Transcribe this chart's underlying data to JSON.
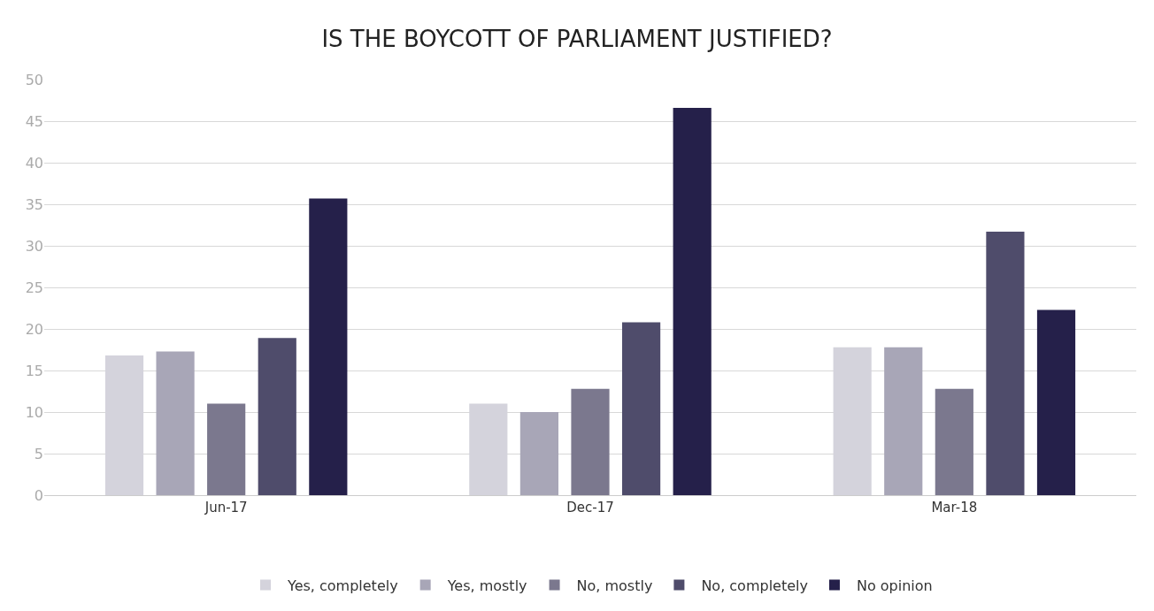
{
  "chart_data": {
    "type": "bar",
    "title": "IS THE BOYCOTT OF PARLIAMENT JUSTIFIED?",
    "categories": [
      "Jun-17",
      "Dec-17",
      "Mar-18"
    ],
    "series": [
      {
        "name": "Yes, completely",
        "color": "#d4d3dc",
        "values": [
          16.8,
          11,
          17.8
        ]
      },
      {
        "name": "Yes, mostly",
        "color": "#a8a6b7",
        "values": [
          17.3,
          10,
          17.8
        ]
      },
      {
        "name": "No, mostly",
        "color": "#7b788e",
        "values": [
          11,
          12.8,
          12.8
        ]
      },
      {
        "name": "No, completely",
        "color": "#4f4c6b",
        "values": [
          18.9,
          20.8,
          31.7
        ]
      },
      {
        "name": "No opinion",
        "color": "#25204a",
        "values": [
          35.7,
          46.6,
          22.3
        ]
      }
    ],
    "ylim": [
      0,
      50
    ],
    "yticks": [
      0,
      5,
      10,
      15,
      20,
      25,
      30,
      35,
      40,
      45,
      50
    ],
    "grid": "y",
    "legend": "bottom"
  }
}
